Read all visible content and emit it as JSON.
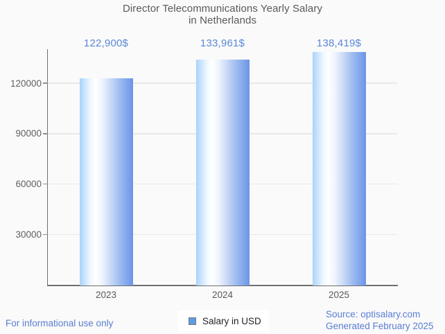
{
  "title": {
    "line1": "Director Telecommunications Yearly Salary",
    "line2": "in Netherlands"
  },
  "chart_data": {
    "type": "bar",
    "title": "Director Telecommunications Yearly Salary in Netherlands",
    "categories": [
      "2023",
      "2024",
      "2025"
    ],
    "series": [
      {
        "name": "Salary in USD",
        "values": [
          122900,
          133961,
          138419
        ]
      }
    ],
    "value_labels": [
      "122,900$",
      "133,961$",
      "138,419$"
    ],
    "yticks": [
      {
        "value": 30000,
        "label": "30000"
      },
      {
        "value": 60000,
        "label": "60000"
      },
      {
        "value": 90000,
        "label": "90000"
      },
      {
        "value": 120000,
        "label": "120000"
      }
    ],
    "ylim": [
      0,
      140000
    ],
    "xlabel": "",
    "ylabel": "",
    "grid": "horizontal",
    "legend_position": "bottom-center"
  },
  "legend": {
    "label": "Salary in USD"
  },
  "footer": {
    "disclaimer": "For informational use only",
    "source": "Source: optisalary.com",
    "generated": "Generated February 2025"
  },
  "colors": {
    "background": "#fafafa",
    "title_text": "#58595b",
    "axis_text": "#5f6061",
    "axis_line": "#6f6f6f",
    "gridline": "#e9e9e9",
    "value_label_text": "#5b87d8",
    "footer_text": "#5a7dd2",
    "legend_swatch": "#5b9ee6",
    "bar_gradient": [
      "#a9d3fa 0%",
      "#eef7ff 20%",
      "#ffffff 29%",
      "#eff4fd 42%",
      "#c9d9f7 58%",
      "#9bbaf0 76%",
      "#6d94e8 100%"
    ]
  }
}
